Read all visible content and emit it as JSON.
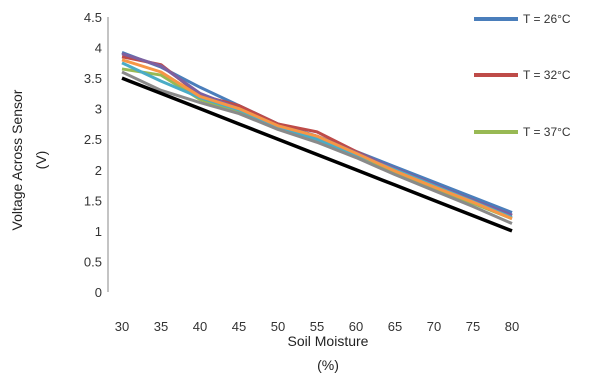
{
  "chart_data": {
    "type": "line",
    "xlabel_line1": "Soil Moisture",
    "xlabel_line2": "(%)",
    "ylabel_line1": "Voltage Across Sensor",
    "ylabel_line2": "(V)",
    "x": [
      30,
      35,
      40,
      45,
      50,
      55,
      60,
      65,
      70,
      75,
      80
    ],
    "x_tick_labels": [
      "30",
      "35",
      "40",
      "45",
      "50",
      "55",
      "60",
      "65",
      "70",
      "75",
      "80"
    ],
    "y_tick_labels": [
      "0",
      "0.5",
      "1",
      "1.5",
      "2",
      "2.5",
      "3",
      "3.5",
      "4",
      "4.5"
    ],
    "ylim": [
      0,
      4.5
    ],
    "xlim": [
      30,
      80
    ],
    "grid": false,
    "legend_position": "right",
    "series": [
      {
        "name": "T = 26°C",
        "color": "#4a7ebb",
        "legend": true,
        "values": [
          3.92,
          3.68,
          3.35,
          3.05,
          2.75,
          2.55,
          2.3,
          2.05,
          1.8,
          1.55,
          1.3
        ]
      },
      {
        "name": "T = 32°C",
        "color": "#be4b48",
        "legend": true,
        "values": [
          3.85,
          3.72,
          3.22,
          3.05,
          2.75,
          2.62,
          2.3,
          2.0,
          1.75,
          1.5,
          1.25
        ]
      },
      {
        "name": "T = 37°C",
        "color": "#98b954",
        "legend": true,
        "values": [
          3.65,
          3.55,
          3.15,
          2.95,
          2.68,
          2.48,
          2.25,
          1.95,
          1.7,
          1.45,
          1.2
        ]
      },
      {
        "name": "",
        "color": "#7d60a0",
        "legend": false,
        "values": [
          3.9,
          3.7,
          3.25,
          3.0,
          2.72,
          2.55,
          2.28,
          2.02,
          1.76,
          1.5,
          1.26
        ]
      },
      {
        "name": "",
        "color": "#4bacc6",
        "legend": false,
        "values": [
          3.75,
          3.45,
          3.18,
          2.98,
          2.7,
          2.5,
          2.25,
          2.0,
          1.74,
          1.48,
          1.22
        ]
      },
      {
        "name": "",
        "color": "#f79646",
        "legend": false,
        "values": [
          3.8,
          3.6,
          3.2,
          3.0,
          2.72,
          2.55,
          2.27,
          1.98,
          1.72,
          1.47,
          1.2
        ]
      },
      {
        "name": "",
        "color": "#8a8a8a",
        "legend": false,
        "values": [
          3.6,
          3.3,
          3.1,
          2.92,
          2.66,
          2.45,
          2.2,
          1.92,
          1.66,
          1.4,
          1.12
        ]
      },
      {
        "name": "",
        "color": "#000000",
        "legend": false,
        "values": [
          3.5,
          3.25,
          3.0,
          2.75,
          2.5,
          2.25,
          2.0,
          1.75,
          1.5,
          1.25,
          1.0
        ]
      }
    ]
  }
}
